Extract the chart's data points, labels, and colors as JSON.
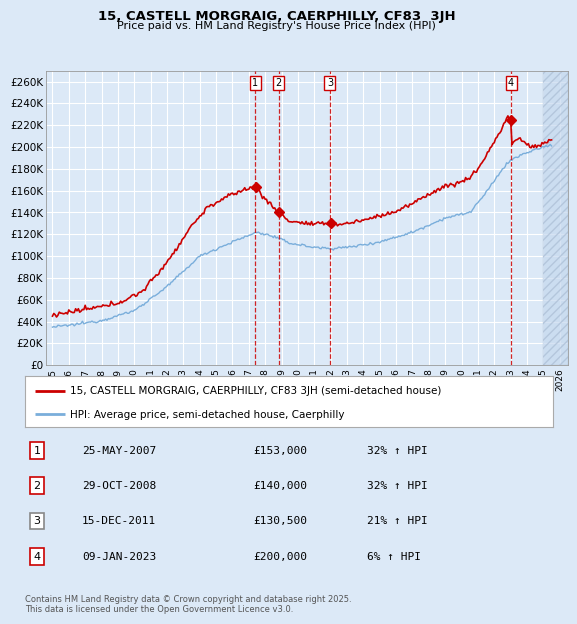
{
  "title": "15, CASTELL MORGRAIG, CAERPHILLY, CF83  3JH",
  "subtitle": "Price paid vs. HM Land Registry's House Price Index (HPI)",
  "background_color": "#dce9f7",
  "plot_bg_color": "#dce9f7",
  "grid_color": "#ffffff",
  "hpi_line_color": "#7aaedb",
  "price_line_color": "#cc0000",
  "ylim": [
    0,
    270000
  ],
  "yticks": [
    0,
    20000,
    40000,
    60000,
    80000,
    100000,
    120000,
    140000,
    160000,
    180000,
    200000,
    220000,
    240000,
    260000
  ],
  "ytick_labels": [
    "£0",
    "£20K",
    "£40K",
    "£60K",
    "£80K",
    "£100K",
    "£120K",
    "£140K",
    "£160K",
    "£180K",
    "£200K",
    "£220K",
    "£240K",
    "£260K"
  ],
  "xmin": 1994.6,
  "xmax": 2026.5,
  "transactions": [
    {
      "num": 1,
      "date": "25-MAY-2007",
      "x": 2007.39,
      "price": 153000,
      "pct": "32%",
      "dir": "↑"
    },
    {
      "num": 2,
      "date": "29-OCT-2008",
      "x": 2008.83,
      "price": 140000,
      "pct": "32%",
      "dir": "↑"
    },
    {
      "num": 3,
      "date": "15-DEC-2011",
      "x": 2011.96,
      "price": 130500,
      "pct": "21%",
      "dir": "↑"
    },
    {
      "num": 4,
      "date": "09-JAN-2023",
      "x": 2023.03,
      "price": 200000,
      "pct": "6%",
      "dir": "↑"
    }
  ],
  "legend_label_red": "15, CASTELL MORGRAIG, CAERPHILLY, CF83 3JH (semi-detached house)",
  "legend_label_blue": "HPI: Average price, semi-detached house, Caerphilly",
  "footer": "Contains HM Land Registry data © Crown copyright and database right 2025.\nThis data is licensed under the Open Government Licence v3.0.",
  "xtick_start": 1995,
  "xtick_end": 2026
}
